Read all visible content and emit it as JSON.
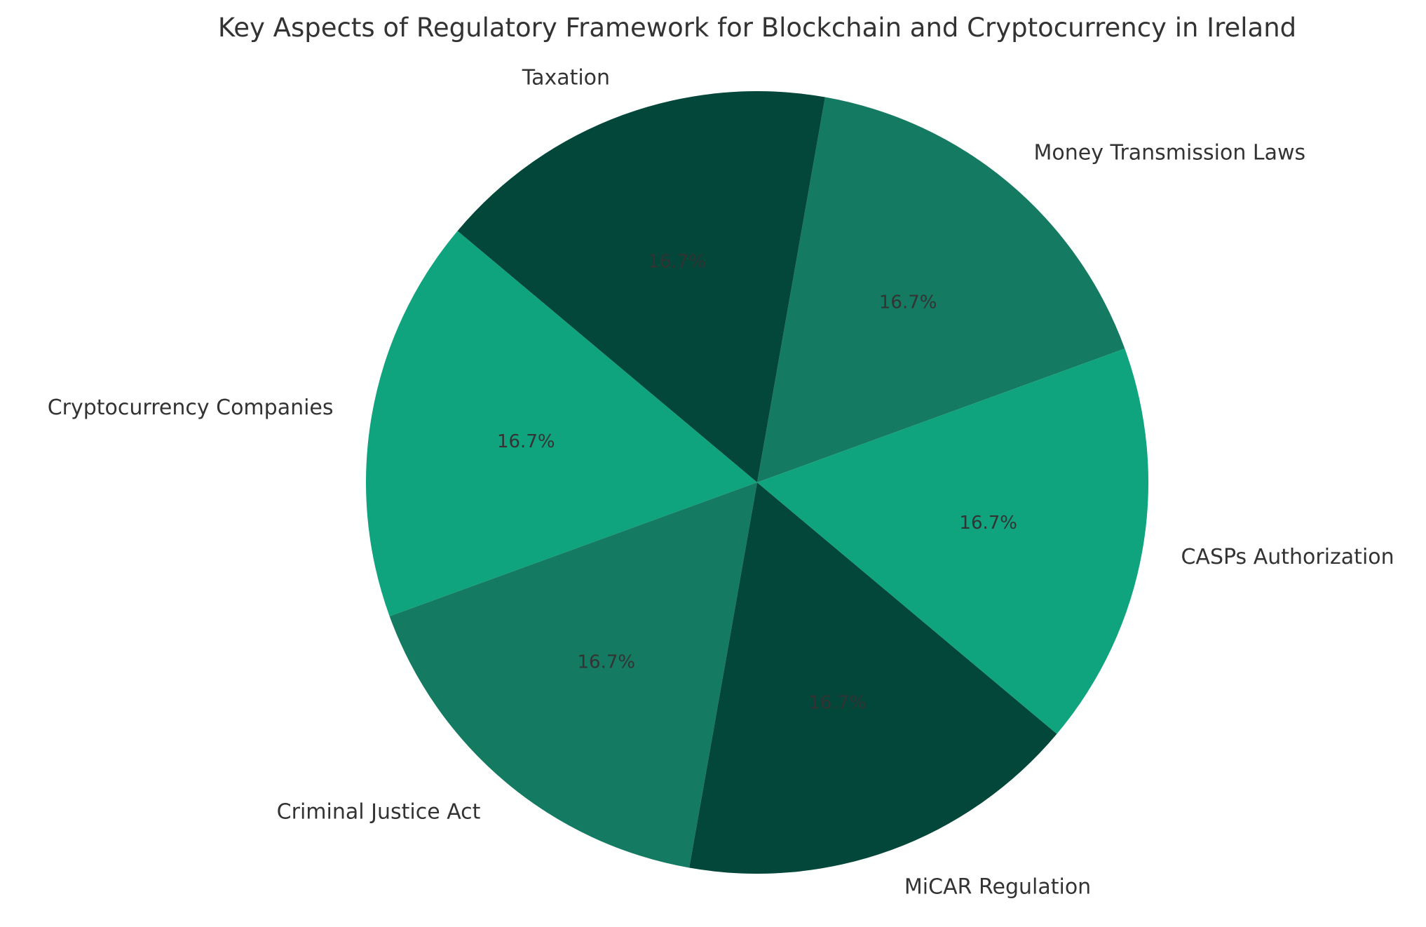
{
  "chart_data": {
    "type": "pie",
    "title": "Key Aspects of Regulatory Framework for Blockchain and Cryptocurrency in Ireland",
    "categories": [
      "Money Transmission Laws",
      "Taxation",
      "Cryptocurrency Companies",
      "Criminal Justice Act",
      "MiCAR Regulation",
      "CASPs Authorization"
    ],
    "values": [
      1,
      1,
      1,
      1,
      1,
      1
    ],
    "percent_labels": [
      "16.7%",
      "16.7%",
      "16.7%",
      "16.7%",
      "16.7%",
      "16.7%"
    ],
    "colors": [
      "#147a62",
      "#03473a",
      "#0fa37e",
      "#147a62",
      "#03473a",
      "#0fa37e"
    ],
    "label_text_color": "#333333",
    "legend": "none",
    "start_angle_deg": 20,
    "direction": "counterclockwise"
  }
}
